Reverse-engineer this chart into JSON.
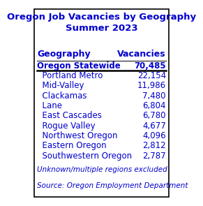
{
  "title": "Oregon Job Vacancies by Geography\nSummer 2023",
  "col_header_geo": "Geography",
  "col_header_vac": "Vacancies",
  "rows": [
    [
      "Oregon Statewide",
      "70,485",
      true
    ],
    [
      "  Portland Metro",
      "22,154",
      false
    ],
    [
      "  Mid-Valley",
      "11,986",
      false
    ],
    [
      "  Clackamas",
      "7,480",
      false
    ],
    [
      "  Lane",
      "6,804",
      false
    ],
    [
      "  East Cascades",
      "6,780",
      false
    ],
    [
      "  Rogue Valley",
      "4,677",
      false
    ],
    [
      "  Northwest Oregon",
      "4,096",
      false
    ],
    [
      "  Eastern Oregon",
      "2,812",
      false
    ],
    [
      "  Southwestern Oregon",
      "2,787",
      false
    ]
  ],
  "footnote1": "Unknown/multiple regions excluded",
  "footnote2": "Source: Oregon Employment Department",
  "text_color": "#0000CD",
  "bg_color": "#FFFFFF",
  "border_color": "#000000",
  "title_fontsize": 9.5,
  "header_fontsize": 9,
  "row_fontsize": 8.5,
  "footnote_fontsize": 7.5
}
